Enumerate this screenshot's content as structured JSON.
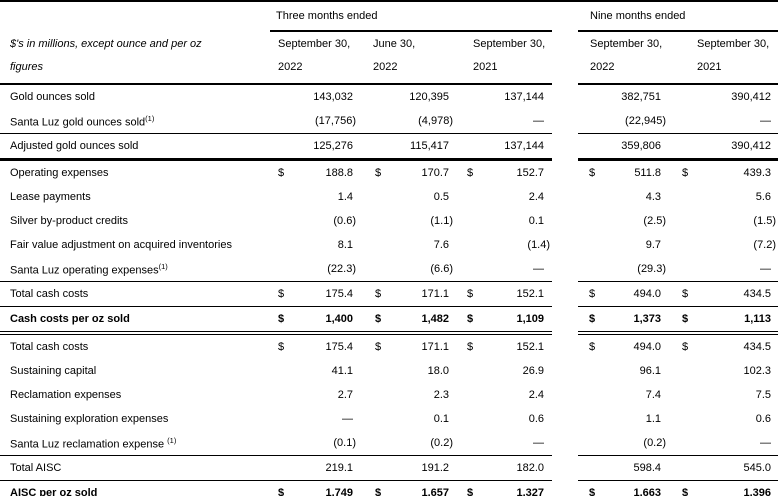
{
  "meta": {
    "unit_note_line1": "$'s in millions, except ounce and per oz",
    "unit_note_line2": "figures"
  },
  "table": {
    "currency_symbol": "$",
    "groups": [
      {
        "label": "Three months ended",
        "cols": [
          [
            "September 30,",
            "2022"
          ],
          [
            "June 30,",
            "2022"
          ],
          [
            "September 30,",
            "2021"
          ]
        ]
      },
      {
        "label": "Nine months ended",
        "cols": [
          [
            "September 30,",
            "2022"
          ],
          [
            "September 30,",
            "2021"
          ]
        ]
      }
    ],
    "rows": [
      {
        "label": "Gold ounces sold",
        "dollar": false,
        "bold": false,
        "border": "none",
        "values": [
          "143,032",
          "120,395",
          "137,144",
          "382,751",
          "390,412"
        ]
      },
      {
        "label": "Santa Luz gold ounces sold",
        "sup": "(1)",
        "dollar": false,
        "bold": false,
        "border": "thin",
        "values": [
          "(17,756)",
          "(4,978)",
          "—",
          "(22,945)",
          "—"
        ]
      },
      {
        "label": "Adjusted gold ounces sold",
        "dollar": false,
        "bold": false,
        "border": "thick",
        "values": [
          "125,276",
          "115,417",
          "137,144",
          "359,806",
          "390,412"
        ]
      },
      {
        "label": "Operating expenses",
        "dollar": true,
        "bold": false,
        "border": "none",
        "values": [
          "188.8",
          "170.7",
          "152.7",
          "511.8",
          "439.3"
        ]
      },
      {
        "label": "Lease payments",
        "dollar": false,
        "bold": false,
        "border": "none",
        "values": [
          "1.4",
          "0.5",
          "2.4",
          "4.3",
          "5.6"
        ]
      },
      {
        "label": "Silver by-product credits",
        "dollar": false,
        "bold": false,
        "border": "none",
        "values": [
          "(0.6)",
          "(1.1)",
          "0.1",
          "(2.5)",
          "(1.5)"
        ]
      },
      {
        "label": "Fair value adjustment on acquired inventories",
        "dollar": false,
        "bold": false,
        "border": "none",
        "values": [
          "8.1",
          "7.6",
          "(1.4)",
          "9.7",
          "(7.2)"
        ]
      },
      {
        "label": "Santa Luz operating expenses",
        "sup": "(1)",
        "dollar": false,
        "bold": false,
        "border": "thin",
        "values": [
          "(22.3)",
          "(6.6)",
          "—",
          "(29.3)",
          "—"
        ]
      },
      {
        "label": "Total cash costs",
        "dollar": true,
        "bold": false,
        "border": "thin",
        "values": [
          "175.4",
          "171.1",
          "152.1",
          "494.0",
          "434.5"
        ]
      },
      {
        "label": "Cash costs per oz sold",
        "dollar": true,
        "bold": true,
        "border": "double",
        "values": [
          "1,400",
          "1,482",
          "1,109",
          "1,373",
          "1,113"
        ]
      },
      {
        "label": "Total cash costs",
        "dollar": true,
        "bold": false,
        "border": "none",
        "values": [
          "175.4",
          "171.1",
          "152.1",
          "494.0",
          "434.5"
        ]
      },
      {
        "label": "Sustaining capital",
        "dollar": false,
        "bold": false,
        "border": "none",
        "values": [
          "41.1",
          "18.0",
          "26.9",
          "96.1",
          "102.3"
        ]
      },
      {
        "label": "Reclamation expenses",
        "dollar": false,
        "bold": false,
        "border": "none",
        "values": [
          "2.7",
          "2.3",
          "2.4",
          "7.4",
          "7.5"
        ]
      },
      {
        "label": "Sustaining exploration expenses",
        "dollar": false,
        "bold": false,
        "border": "none",
        "values": [
          "—",
          "0.1",
          "0.6",
          "1.1",
          "0.6"
        ]
      },
      {
        "label": "Santa Luz reclamation expense ",
        "sup": "(1)",
        "dollar": false,
        "bold": false,
        "border": "thin",
        "values": [
          "(0.1)",
          "(0.2)",
          "—",
          "(0.2)",
          "—"
        ]
      },
      {
        "label": "Total AISC",
        "dollar": false,
        "bold": false,
        "border": "thin",
        "values": [
          "219.1",
          "191.2",
          "182.0",
          "598.4",
          "545.0"
        ]
      },
      {
        "label": "AISC per oz sold",
        "dollar": true,
        "bold": true,
        "border": "none",
        "values": [
          "1,749",
          "1,657",
          "1,327",
          "1,663",
          "1,396"
        ]
      }
    ]
  }
}
